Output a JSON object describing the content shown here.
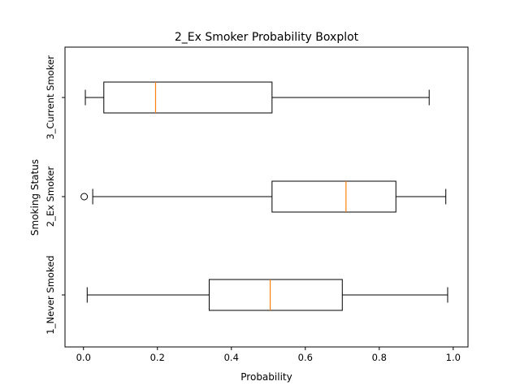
{
  "chart_data": {
    "type": "boxplot",
    "orientation": "horizontal",
    "title": "2_Ex Smoker Probability Boxplot",
    "xlabel": "Probability",
    "ylabel": "Smoking Status",
    "xlim": [
      -0.05,
      1.04
    ],
    "xticks": [
      0.0,
      0.2,
      0.4,
      0.6,
      0.8,
      1.0
    ],
    "xtick_labels": [
      "0.0",
      "0.2",
      "0.4",
      "0.6",
      "0.8",
      "1.0"
    ],
    "grid": false,
    "categories": [
      "1_Never Smoked",
      "2_Ex Smoker",
      "3_Current Smoker"
    ],
    "boxes": [
      {
        "category": "1_Never Smoked",
        "whisker_low": 0.01,
        "q1": 0.34,
        "median": 0.505,
        "q3": 0.7,
        "whisker_high": 0.985,
        "outliers": []
      },
      {
        "category": "2_Ex Smoker",
        "whisker_low": 0.025,
        "q1": 0.51,
        "median": 0.71,
        "q3": 0.845,
        "whisker_high": 0.98,
        "outliers": [
          0.002
        ]
      },
      {
        "category": "3_Current Smoker",
        "whisker_low": 0.005,
        "q1": 0.055,
        "median": 0.195,
        "q3": 0.51,
        "whisker_high": 0.935,
        "outliers": []
      }
    ],
    "colors": {
      "box": "#000000",
      "median": "#ff7f0e"
    }
  }
}
